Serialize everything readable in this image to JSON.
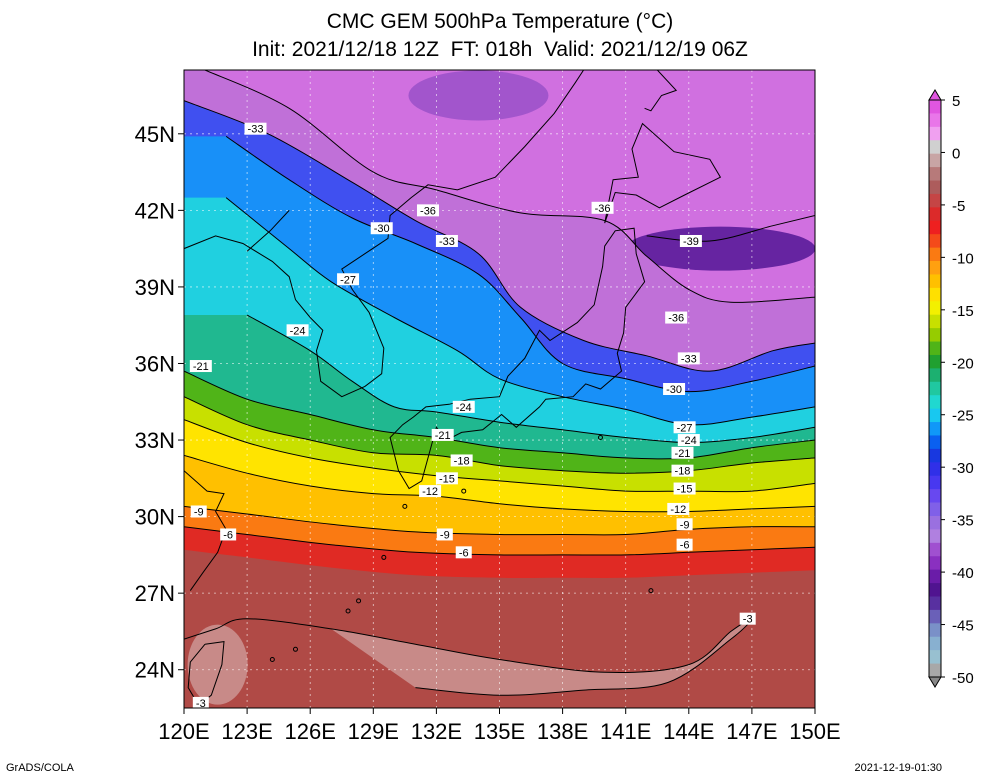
{
  "title": {
    "line1": "CMC GEM 500hPa Temperature (°C)",
    "line2": "Init: 2021/12/18 12Z  FT: 018h  Valid: 2021/12/19 06Z"
  },
  "map": {
    "lon_range": [
      120,
      150
    ],
    "lat_range": [
      22.5,
      47.5
    ],
    "lat_ticks": [
      {
        "value": 24,
        "label": "24N"
      },
      {
        "value": 27,
        "label": "27N"
      },
      {
        "value": 30,
        "label": "30N"
      },
      {
        "value": 33,
        "label": "33N"
      },
      {
        "value": 36,
        "label": "36N"
      },
      {
        "value": 39,
        "label": "39N"
      },
      {
        "value": 42,
        "label": "42N"
      },
      {
        "value": 45,
        "label": "45N"
      }
    ],
    "lon_ticks": [
      {
        "value": 120,
        "label": "120E"
      },
      {
        "value": 123,
        "label": "123E"
      },
      {
        "value": 126,
        "label": "126E"
      },
      {
        "value": 129,
        "label": "129E"
      },
      {
        "value": 132,
        "label": "132E"
      },
      {
        "value": 135,
        "label": "135E"
      },
      {
        "value": 138,
        "label": "138E"
      },
      {
        "value": 141,
        "label": "141E"
      },
      {
        "value": 144,
        "label": "144E"
      },
      {
        "value": 147,
        "label": "147E"
      },
      {
        "value": 150,
        "label": "150E"
      }
    ],
    "isotherms": [
      {
        "value": -3,
        "points": [
          [
            120,
            25.2
          ],
          [
            121.5,
            25.6
          ],
          [
            123,
            26.0
          ],
          [
            127,
            25.6
          ],
          [
            131,
            25.0
          ],
          [
            135,
            24.4
          ],
          [
            140,
            23.9
          ],
          [
            144,
            24.2
          ],
          [
            146,
            25.5
          ],
          [
            147,
            26.0
          ],
          [
            146,
            25.2
          ],
          [
            143,
            23.5
          ],
          [
            139,
            23.2
          ],
          [
            135,
            23.0
          ],
          [
            131,
            23.3
          ]
        ],
        "labels": [
          {
            "lon": 120.8,
            "lat": 22.7,
            "text": "-3"
          },
          {
            "lon": 146.8,
            "lat": 26.0,
            "text": "-3"
          }
        ]
      },
      {
        "value": -6,
        "points": [
          [
            120,
            29.6
          ],
          [
            123,
            29.3
          ],
          [
            127,
            28.9
          ],
          [
            131,
            28.6
          ],
          [
            135,
            28.5
          ],
          [
            138,
            28.5
          ],
          [
            141,
            28.5
          ],
          [
            144,
            28.6
          ],
          [
            147,
            28.7
          ],
          [
            150,
            28.8
          ]
        ],
        "labels": [
          {
            "lon": 122.1,
            "lat": 29.3,
            "text": "-6"
          },
          {
            "lon": 133.3,
            "lat": 28.6,
            "text": "-6"
          },
          {
            "lon": 143.8,
            "lat": 28.9,
            "text": "-6"
          }
        ]
      },
      {
        "value": -9,
        "points": [
          [
            120,
            30.4
          ],
          [
            123,
            30.1
          ],
          [
            127,
            29.7
          ],
          [
            131,
            29.4
          ],
          [
            135,
            29.3
          ],
          [
            138,
            29.3
          ],
          [
            141,
            29.3
          ],
          [
            144,
            29.5
          ],
          [
            147,
            29.6
          ],
          [
            150,
            29.6
          ]
        ],
        "labels": [
          {
            "lon": 120.7,
            "lat": 30.2,
            "text": "-9"
          },
          {
            "lon": 132.4,
            "lat": 29.3,
            "text": "-9"
          },
          {
            "lon": 143.8,
            "lat": 29.7,
            "text": "-9"
          }
        ]
      },
      {
        "value": -12,
        "points": [
          [
            120,
            32.4
          ],
          [
            123,
            31.7
          ],
          [
            126,
            31.2
          ],
          [
            129,
            30.9
          ],
          [
            132,
            30.8
          ],
          [
            135,
            30.5
          ],
          [
            138,
            30.3
          ],
          [
            141,
            30.2
          ],
          [
            144,
            30.2
          ],
          [
            147,
            30.3
          ],
          [
            150,
            30.4
          ]
        ],
        "labels": [
          {
            "lon": 131.7,
            "lat": 31.0,
            "text": "-12"
          },
          {
            "lon": 143.5,
            "lat": 30.3,
            "text": "-12"
          }
        ]
      },
      {
        "value": -15,
        "points": [
          [
            120,
            33.8
          ],
          [
            123,
            32.9
          ],
          [
            126,
            32.3
          ],
          [
            129,
            31.9
          ],
          [
            132,
            31.6
          ],
          [
            135,
            31.4
          ],
          [
            138,
            31.2
          ],
          [
            141,
            31.0
          ],
          [
            144,
            31.0
          ],
          [
            147,
            31.0
          ],
          [
            150,
            31.3
          ]
        ],
        "labels": [
          {
            "lon": 132.5,
            "lat": 31.5,
            "text": "-15"
          },
          {
            "lon": 143.8,
            "lat": 31.1,
            "text": "-15"
          }
        ]
      },
      {
        "value": -18,
        "points": [
          [
            120,
            34.7
          ],
          [
            123,
            33.6
          ],
          [
            126,
            33.0
          ],
          [
            129,
            32.5
          ],
          [
            132,
            32.4
          ],
          [
            135,
            32.0
          ],
          [
            138,
            31.8
          ],
          [
            141,
            31.7
          ],
          [
            144,
            31.8
          ],
          [
            147,
            32.1
          ],
          [
            150,
            32.3
          ]
        ],
        "labels": [
          {
            "lon": 133.2,
            "lat": 32.2,
            "text": "-18"
          },
          {
            "lon": 143.7,
            "lat": 31.8,
            "text": "-18"
          }
        ]
      },
      {
        "value": -21,
        "points": [
          [
            120,
            35.7
          ],
          [
            123,
            34.6
          ],
          [
            126,
            34.0
          ],
          [
            129,
            33.4
          ],
          [
            132,
            33.1
          ],
          [
            135,
            32.7
          ],
          [
            138,
            32.5
          ],
          [
            141,
            32.3
          ],
          [
            144,
            32.3
          ],
          [
            147,
            32.7
          ],
          [
            150,
            33.0
          ]
        ],
        "labels": [
          {
            "lon": 120.8,
            "lat": 35.9,
            "text": "-21"
          },
          {
            "lon": 132.3,
            "lat": 33.2,
            "text": "-21"
          },
          {
            "lon": 143.7,
            "lat": 32.5,
            "text": "-21"
          }
        ]
      },
      {
        "value": -24,
        "points": [
          [
            123,
            37.9
          ],
          [
            126,
            36.5
          ],
          [
            128,
            35.3
          ],
          [
            130,
            34.3
          ],
          [
            132,
            34.1
          ],
          [
            135,
            33.7
          ],
          [
            138,
            33.4
          ],
          [
            141,
            33.1
          ],
          [
            144,
            32.9
          ],
          [
            147,
            33.1
          ],
          [
            150,
            33.5
          ]
        ],
        "labels": [
          {
            "lon": 125.4,
            "lat": 37.3,
            "text": "-24"
          },
          {
            "lon": 133.3,
            "lat": 34.3,
            "text": "-24"
          },
          {
            "lon": 144.0,
            "lat": 33.0,
            "text": "-24"
          }
        ]
      },
      {
        "value": -27,
        "points": [
          [
            122,
            42.5
          ],
          [
            125,
            40.5
          ],
          [
            127,
            39.2
          ],
          [
            130,
            37.8
          ],
          [
            133,
            36.5
          ],
          [
            135,
            35.4
          ],
          [
            138,
            34.7
          ],
          [
            141,
            34.2
          ],
          [
            144,
            33.6
          ],
          [
            147,
            33.9
          ],
          [
            150,
            34.3
          ]
        ],
        "labels": [
          {
            "lon": 127.8,
            "lat": 39.3,
            "text": "-27"
          },
          {
            "lon": 143.8,
            "lat": 33.5,
            "text": "-27"
          }
        ]
      },
      {
        "value": -30,
        "points": [
          [
            122,
            44.9
          ],
          [
            125,
            43.2
          ],
          [
            128,
            41.7
          ],
          [
            131,
            40.7
          ],
          [
            134,
            39.5
          ],
          [
            136,
            37.8
          ],
          [
            138,
            36.0
          ],
          [
            141,
            35.4
          ],
          [
            144,
            34.9
          ],
          [
            147,
            35.3
          ],
          [
            150,
            35.9
          ]
        ],
        "labels": [
          {
            "lon": 129.4,
            "lat": 41.3,
            "text": "-30"
          },
          {
            "lon": 143.3,
            "lat": 35.0,
            "text": "-30"
          }
        ]
      },
      {
        "value": -33,
        "points": [
          [
            120,
            46.3
          ],
          [
            124,
            45.0
          ],
          [
            128,
            43.1
          ],
          [
            131,
            41.6
          ],
          [
            134,
            40.3
          ],
          [
            136,
            38.2
          ],
          [
            139,
            36.9
          ],
          [
            142,
            36.3
          ],
          [
            145,
            35.7
          ],
          [
            148,
            36.5
          ],
          [
            150,
            36.8
          ]
        ],
        "labels": [
          {
            "lon": 123.4,
            "lat": 45.2,
            "text": "-33"
          },
          {
            "lon": 132.5,
            "lat": 40.8,
            "text": "-33"
          },
          {
            "lon": 144.0,
            "lat": 36.2,
            "text": "-33"
          }
        ]
      },
      {
        "value": -36,
        "points": [
          [
            121,
            47.5
          ],
          [
            125,
            46.0
          ],
          [
            129,
            43.5
          ],
          [
            132,
            42.8
          ],
          [
            136,
            41.9
          ],
          [
            140,
            41.6
          ],
          [
            142,
            40.2
          ],
          [
            144,
            38.9
          ],
          [
            146,
            38.4
          ],
          [
            150,
            38.6
          ]
        ],
        "labels": [
          {
            "lon": 131.6,
            "lat": 42.0,
            "text": "-36"
          },
          {
            "lon": 139.9,
            "lat": 42.1,
            "text": "-36"
          },
          {
            "lon": 143.4,
            "lat": 37.8,
            "text": "-36"
          }
        ]
      },
      {
        "value": -39,
        "points": [
          [
            142,
            41.0
          ],
          [
            145,
            40.8
          ],
          [
            148,
            41.4
          ],
          [
            150,
            41.8
          ]
        ],
        "labels": [
          {
            "lon": 144.1,
            "lat": 40.8,
            "text": "-39"
          }
        ]
      }
    ],
    "colorbar": {
      "labels": [
        "5",
        "0",
        "-5",
        "-10",
        "-15",
        "-20",
        "-25",
        "-30",
        "-35",
        "-40",
        "-45",
        "-50"
      ],
      "colors": [
        "#e056e0",
        "#e976e9",
        "#f0a0f0",
        "#d0d0d0",
        "#c8a5a5",
        "#b77a7a",
        "#ad5c5c",
        "#c54545",
        "#dc2a2a",
        "#ee2020",
        "#f44a1a",
        "#fa7a12",
        "#ffa010",
        "#ffc000",
        "#ffe000",
        "#f3f000",
        "#c8e000",
        "#96cc00",
        "#50b418",
        "#20a030",
        "#1cb070",
        "#20c8a0",
        "#20d8d0",
        "#18c8f0",
        "#1098f8",
        "#0a60f0",
        "#1838e0",
        "#3030e8",
        "#4838f0",
        "#6848f0",
        "#8060e8",
        "#9a70e0",
        "#b080e0",
        "#a050d0",
        "#8a30c0",
        "#6a1ca8",
        "#501490",
        "#5830a0",
        "#6a60b8",
        "#7a90c8",
        "#88b0d0",
        "#98c0d0",
        "#a8a8a8"
      ]
    },
    "region_fill_stops": [
      {
        "temp": -42,
        "color": "#501490"
      },
      {
        "temp": -39,
        "color": "#6a1ca8"
      },
      {
        "temp": -37,
        "color": "#9a50c8"
      },
      {
        "temp": -35,
        "color": "#c070d8"
      },
      {
        "temp": -34,
        "color": "#e080e8"
      },
      {
        "temp": -32,
        "color": "#4050f0"
      },
      {
        "temp": -30,
        "color": "#1838e0"
      },
      {
        "temp": -28,
        "color": "#1098f8"
      },
      {
        "temp": -26,
        "color": "#20d0e0"
      },
      {
        "temp": -24,
        "color": "#20c8a0"
      },
      {
        "temp": -22,
        "color": "#20a030"
      },
      {
        "temp": -19,
        "color": "#96cc00"
      },
      {
        "temp": -16,
        "color": "#e8ec00"
      },
      {
        "temp": -13,
        "color": "#ffd800"
      },
      {
        "temp": -10,
        "color": "#ffa010"
      },
      {
        "temp": -8,
        "color": "#f44a1a"
      },
      {
        "temp": -6,
        "color": "#dc2a2a"
      },
      {
        "temp": -4,
        "color": "#b04a46"
      },
      {
        "temp": -2,
        "color": "#b77a7a"
      }
    ]
  },
  "footer": {
    "left": "GrADS/COLA",
    "right": "2021-12-19-01:30"
  }
}
